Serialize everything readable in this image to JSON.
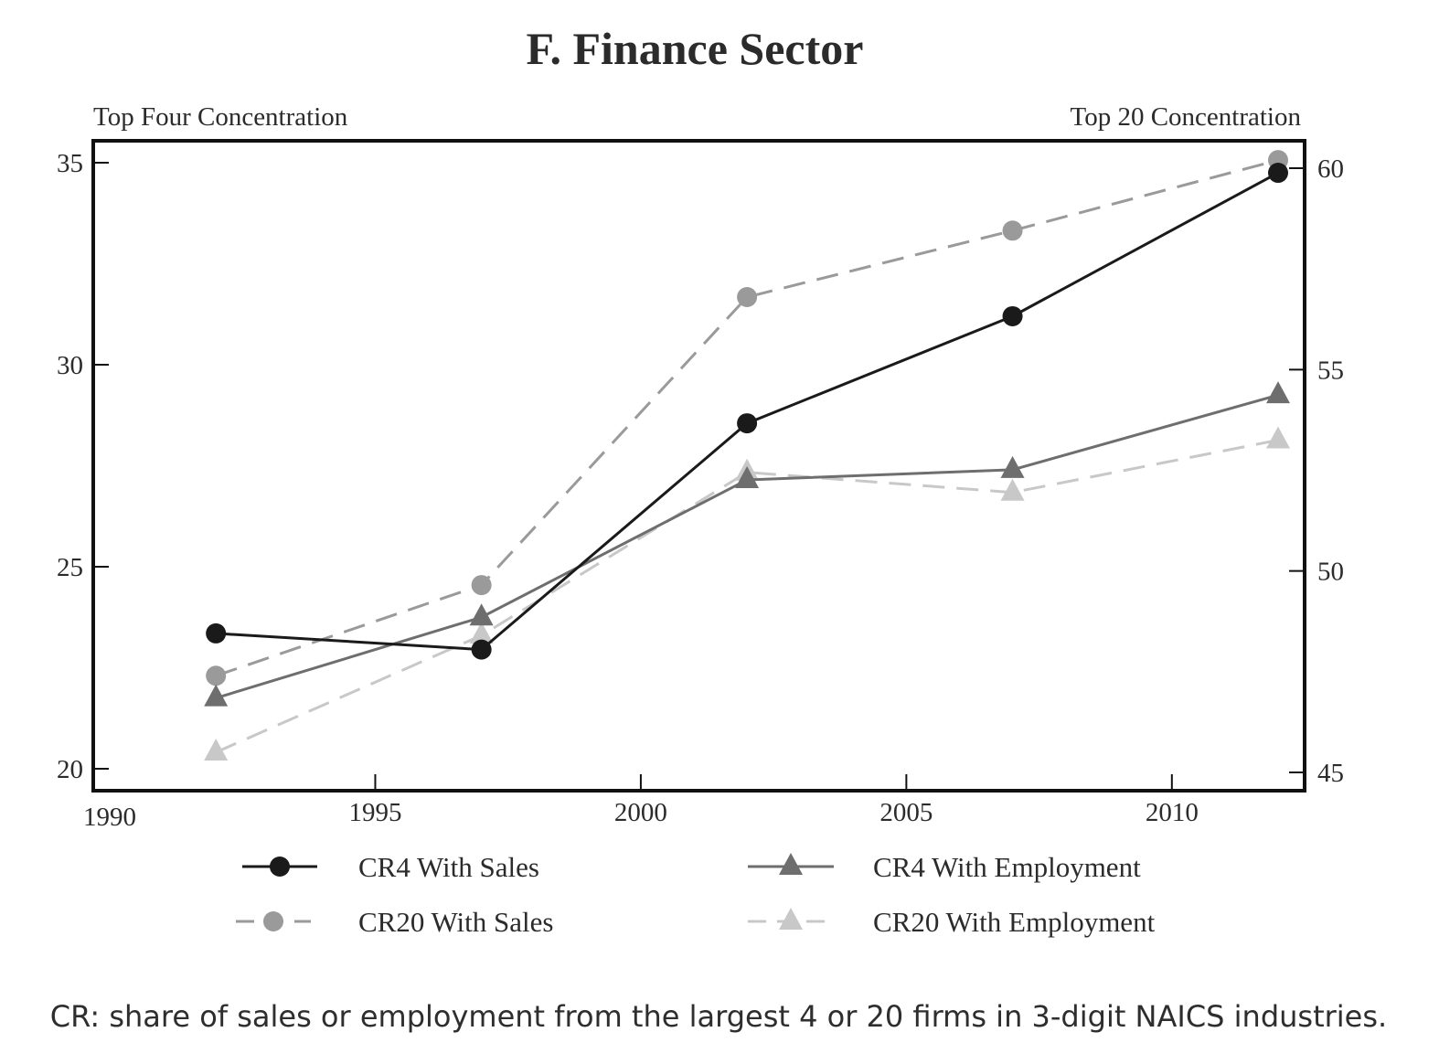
{
  "chart_data": {
    "type": "line",
    "title": "F. Finance Sector",
    "y_left_label": "Top Four Concentration",
    "y_right_label": "Top 20 Concentration",
    "x_ticks": [
      "1990",
      "1995",
      "2000",
      "2005",
      "2010"
    ],
    "x_range": [
      1990,
      2012.5
    ],
    "y_left_ticks": [
      "20",
      "25",
      "30",
      "35"
    ],
    "y_left_range": [
      19.4,
      35.6
    ],
    "y_right_ticks": [
      "45",
      "50",
      "55",
      "60"
    ],
    "y_right_range": [
      44.4,
      61.0
    ],
    "x": [
      1992,
      1997,
      2002,
      2007,
      2012
    ],
    "series": [
      {
        "name": "CR4 With Sales",
        "axis": "left",
        "marker": "circle",
        "color": "#1a1a1a",
        "dashed": false,
        "values": [
          23.35,
          22.95,
          28.55,
          31.2,
          34.75
        ]
      },
      {
        "name": "CR20 With Sales",
        "axis": "right",
        "marker": "circle",
        "color": "#9a9a9a",
        "dashed": true,
        "values": [
          47.4,
          49.65,
          56.8,
          58.45,
          60.2
        ]
      },
      {
        "name": "CR4 With Employment",
        "axis": "left",
        "marker": "triangle",
        "color": "#6e6e6e",
        "dashed": false,
        "values": [
          21.75,
          23.75,
          27.15,
          27.4,
          29.25
        ]
      },
      {
        "name": "CR20 With Employment",
        "axis": "right",
        "marker": "triangle",
        "color": "#c8c8c8",
        "dashed": true,
        "values": [
          45.5,
          48.4,
          52.45,
          51.95,
          53.25
        ]
      }
    ],
    "legend_position": "bottom",
    "grid": false
  },
  "footnote": "CR: share of sales or employment from the largest 4 or 20 firms in 3-digit NAICS industries."
}
